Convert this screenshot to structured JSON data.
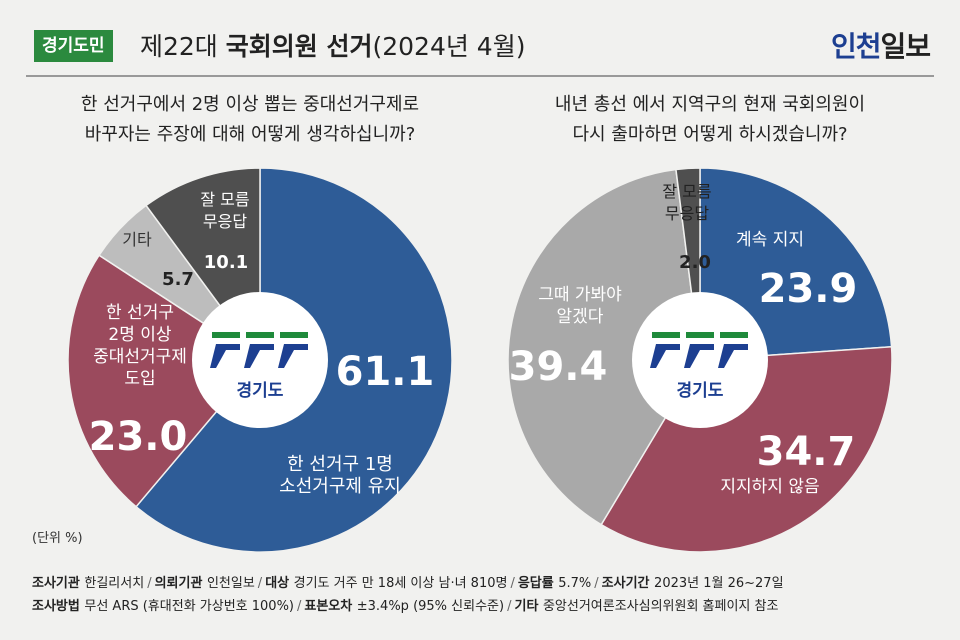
{
  "header": {
    "badge": "경기도민",
    "title_prefix": "제22대 ",
    "title_bold": "국회의원 선거",
    "title_suffix": "(2024년 4월)",
    "logo_part1": "인천",
    "logo_part2": "일보"
  },
  "unit": "(단위 %)",
  "emblem": {
    "label": "경기도"
  },
  "chart_data": [
    {
      "type": "pie",
      "title": "한 선거구에서 2명 이상 뽑는 중대선거구제로 바꾸자는 주장에 대해 어떻게 생각하십니까?",
      "title_lines": [
        "한 선거구에서 2명 이상 뽑는 중대선거구제로",
        "바꾸자는 주장에 대해 어떻게 생각하십니까?"
      ],
      "slices": [
        {
          "label": "한 선거구 1명 소선거구제 유지",
          "label_lines": [
            "한 선거구 1명",
            "소선거구제 유지"
          ],
          "value": 61.1,
          "display": "61.1",
          "color": "#2e5c97"
        },
        {
          "label": "한 선거구 2명 이상 중대선거구제 도입",
          "label_lines": [
            "한 선거구",
            "2명 이상",
            "중대선거구제",
            "도입"
          ],
          "value": 23.0,
          "display": "23.0",
          "color": "#9b4a5d"
        },
        {
          "label": "기타",
          "label_lines": [
            "기타"
          ],
          "value": 5.7,
          "display": "5.7",
          "color": "#bdbdbd"
        },
        {
          "label": "잘 모름 무응답",
          "label_lines": [
            "잘 모름",
            "무응답"
          ],
          "value": 10.1,
          "display": "10.1",
          "color": "#4f4f4f"
        }
      ]
    },
    {
      "type": "pie",
      "title": "내년 총선 에서 지역구의 현재 국회의원이 다시 출마하면 어떻게 하시겠습니까?",
      "title_lines": [
        "내년 총선 에서 지역구의 현재 국회의원이",
        "다시 출마하면 어떻게 하시겠습니까?"
      ],
      "slices": [
        {
          "label": "계속 지지",
          "label_lines": [
            "계속 지지"
          ],
          "value": 23.9,
          "display": "23.9",
          "color": "#2e5c97"
        },
        {
          "label": "지지하지 않음",
          "label_lines": [
            "지지하지 않음"
          ],
          "value": 34.7,
          "display": "34.7",
          "color": "#9b4a5d"
        },
        {
          "label": "그때 가봐야 알겠다",
          "label_lines": [
            "그때 가봐야",
            "알겠다"
          ],
          "value": 39.4,
          "display": "39.4",
          "color": "#a9a9a9"
        },
        {
          "label": "잘 모름 무응답",
          "label_lines": [
            "잘 모름",
            "무응답"
          ],
          "value": 2.0,
          "display": "2.0",
          "color": "#4f4f4f"
        }
      ]
    }
  ],
  "footer": {
    "line1": [
      {
        "k": "조사기관",
        "v": "한길리서치"
      },
      {
        "k": "의뢰기관",
        "v": "인천일보"
      },
      {
        "k": "대상",
        "v": "경기도 거주 만 18세 이상 남·녀 810명"
      },
      {
        "k": "응답률",
        "v": "5.7%"
      },
      {
        "k": "조사기간",
        "v": "2023년 1월 26~27일"
      }
    ],
    "line2": [
      {
        "k": "조사방법",
        "v": "무선 ARS (휴대전화 가상번호 100%)"
      },
      {
        "k": "표본오차",
        "v": "±3.4%p (95% 신뢰수준)"
      },
      {
        "k": "기타",
        "v": "중앙선거여론조사심의위원회 홈페이지 참조"
      }
    ]
  }
}
